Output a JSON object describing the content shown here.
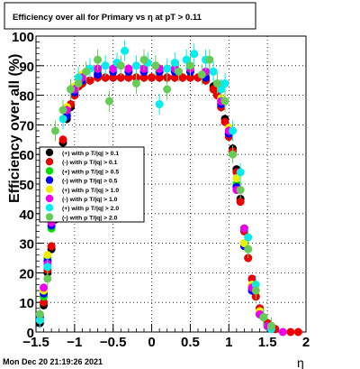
{
  "chart_data": {
    "type": "scatter",
    "title": "Efficiency over all for Primary vs  η at pT > 0.11",
    "xlabel": "η",
    "ylabel": "Efficiency over all (%)",
    "xlim": [
      -1.5,
      2
    ],
    "ylim": [
      0,
      100
    ],
    "x_ticks": [
      -1.5,
      -1,
      -0.5,
      0,
      0.5,
      1,
      1.5,
      2
    ],
    "x_tick_labels": [
      "−1.5",
      "−1",
      "−0.5",
      "0",
      "0.5",
      "1",
      "1.5",
      "2"
    ],
    "y_ticks": [
      0,
      10,
      20,
      30,
      40,
      50,
      60,
      70,
      80,
      90,
      100
    ],
    "y_tick_labels": [
      "0",
      "10",
      "20",
      "30",
      "40",
      "50",
      "60",
      "70",
      "80",
      "90",
      "100"
    ],
    "grid": true,
    "legend_position": "middle-left",
    "footer": "Mon Dec 20 21:19:26 2021",
    "series": [
      {
        "name": "(+) with p T/|q| > 0.1",
        "color": "#000000",
        "x": [
          -1.45,
          -1.4,
          -1.35,
          -1.3,
          -1.25,
          -1.2,
          -1.15,
          -1.1,
          -1.05,
          -1.0,
          -0.95,
          -0.9,
          -0.8,
          -0.7,
          -0.6,
          -0.5,
          -0.4,
          -0.3,
          -0.2,
          -0.1,
          0.0,
          0.1,
          0.2,
          0.3,
          0.4,
          0.5,
          0.6,
          0.7,
          0.8,
          0.85,
          0.9,
          0.95,
          1.0,
          1.05,
          1.1,
          1.15,
          1.2,
          1.25,
          1.3,
          1.35,
          1.4,
          1.45,
          1.5,
          1.55,
          1.6
        ],
        "y": [
          3,
          9,
          20,
          28,
          38,
          52,
          64,
          72,
          76,
          80,
          83,
          84,
          85,
          86,
          86,
          86,
          86,
          86,
          86,
          86,
          86,
          86,
          86,
          86,
          86,
          86,
          86,
          85,
          83,
          80,
          76,
          72,
          67,
          62,
          55,
          45,
          35,
          25,
          18,
          12,
          8,
          5,
          3,
          2,
          1
        ]
      },
      {
        "name": "(-) with p T/|q| > 0.1",
        "color": "#ee0000",
        "x": [
          -1.45,
          -1.4,
          -1.35,
          -1.3,
          -1.25,
          -1.2,
          -1.15,
          -1.1,
          -1.05,
          -1.0,
          -0.95,
          -0.9,
          -0.8,
          -0.7,
          -0.6,
          -0.5,
          -0.4,
          -0.3,
          -0.2,
          -0.1,
          0.0,
          0.1,
          0.2,
          0.3,
          0.4,
          0.5,
          0.6,
          0.7,
          0.8,
          0.85,
          0.9,
          0.95,
          1.0,
          1.05,
          1.1,
          1.15,
          1.2,
          1.25,
          1.3,
          1.35,
          1.4,
          1.45,
          1.5,
          1.55,
          1.6,
          1.8,
          1.9
        ],
        "y": [
          4,
          10,
          21,
          29,
          40,
          53,
          65,
          73,
          77,
          80,
          83,
          84,
          85,
          86,
          86,
          86,
          86,
          86,
          86,
          86,
          86,
          86,
          86,
          86,
          86,
          86,
          86,
          85,
          82,
          80,
          76,
          71,
          66,
          61,
          54,
          44,
          34,
          25,
          18,
          12,
          8,
          5,
          3,
          2,
          1,
          0,
          0
        ]
      },
      {
        "name": "(+) with p T/|q| > 0.5",
        "color": "#00dd00",
        "x": [
          -1.45,
          -1.4,
          -1.35,
          -1.3,
          -1.2,
          -1.1,
          -1.0,
          -0.9,
          -0.7,
          -0.5,
          -0.3,
          -0.1,
          0.1,
          0.3,
          0.5,
          0.7,
          0.9,
          1.0,
          1.1,
          1.2,
          1.3,
          1.4,
          1.5
        ],
        "y": [
          5,
          12,
          25,
          35,
          58,
          74,
          82,
          86,
          88,
          88,
          88,
          88,
          88,
          88,
          88,
          87,
          78,
          68,
          50,
          30,
          15,
          6,
          2
        ]
      },
      {
        "name": "(-) with p T/|q| > 0.5",
        "color": "#0000ff",
        "x": [
          -1.45,
          -1.4,
          -1.35,
          -1.3,
          -1.2,
          -1.1,
          -1.0,
          -0.9,
          -0.7,
          -0.5,
          -0.3,
          -0.1,
          0.1,
          0.3,
          0.5,
          0.7,
          0.9,
          1.0,
          1.1,
          1.2,
          1.3,
          1.4,
          1.5
        ],
        "y": [
          5,
          13,
          24,
          36,
          57,
          73,
          81,
          85,
          87,
          88,
          88,
          88,
          88,
          88,
          88,
          86,
          77,
          67,
          49,
          29,
          14,
          6,
          2
        ]
      },
      {
        "name": "(+) with p T/|q| > 1.0",
        "color": "#eeee00",
        "x": [
          -1.45,
          -1.4,
          -1.35,
          -1.3,
          -1.2,
          -1.1,
          -1.0,
          -0.9,
          -0.7,
          -0.5,
          -0.3,
          -0.1,
          0.1,
          0.3,
          0.5,
          0.7,
          0.9,
          1.0,
          1.1,
          1.2,
          1.3,
          1.4,
          1.5
        ],
        "y": [
          6,
          14,
          26,
          38,
          60,
          76,
          83,
          87,
          89,
          89,
          89,
          89,
          89,
          89,
          89,
          88,
          79,
          69,
          52,
          30,
          16,
          7,
          2
        ]
      },
      {
        "name": "(-) with p T/|q| > 1.0",
        "color": "#ee00ee",
        "x": [
          -1.45,
          -1.4,
          -1.35,
          -1.3,
          -1.2,
          -1.1,
          -1.0,
          -0.9,
          -0.7,
          -0.5,
          -0.3,
          -0.1,
          0.1,
          0.3,
          0.5,
          0.7,
          0.9,
          1.0,
          1.1,
          1.2,
          1.3,
          1.4,
          1.5,
          1.7
        ],
        "y": [
          6,
          15,
          23,
          37,
          59,
          75,
          82,
          86,
          89,
          89,
          89,
          89,
          89,
          89,
          89,
          88,
          78,
          68,
          48,
          35,
          15,
          6,
          2,
          0
        ]
      },
      {
        "name": "(+) with p T/|q| > 2.0",
        "color": "#00eeee",
        "x": [
          -1.45,
          -1.35,
          -1.25,
          -1.15,
          -1.05,
          -0.95,
          -0.8,
          -0.6,
          -0.45,
          -0.35,
          -0.2,
          -0.05,
          0.1,
          0.2,
          0.3,
          0.45,
          0.55,
          0.7,
          0.8,
          0.9,
          0.95,
          1.05,
          1.15,
          1.25,
          1.35,
          1.45,
          1.55
        ],
        "y": [
          4,
          22,
          46,
          72,
          82,
          86,
          89,
          90,
          91,
          95,
          90,
          91,
          77,
          89,
          91,
          92,
          94,
          92,
          88,
          82,
          84,
          68,
          54,
          32,
          16,
          5,
          1
        ]
      },
      {
        "name": "(-) with p T/|q| > 2.0",
        "color": "#66cc55",
        "x": [
          -1.45,
          -1.35,
          -1.25,
          -1.15,
          -1.05,
          -0.95,
          -0.85,
          -0.7,
          -0.55,
          -0.4,
          -0.2,
          -0.1,
          0.05,
          0.2,
          0.35,
          0.5,
          0.65,
          0.75,
          0.85,
          0.95,
          1.05,
          1.15,
          1.25,
          1.35,
          1.45,
          1.55
        ],
        "y": [
          6,
          18,
          68,
          75,
          82,
          84,
          88,
          92,
          78,
          90,
          84,
          92,
          90,
          82,
          88,
          90,
          87,
          92,
          84,
          78,
          60,
          48,
          28,
          14,
          5,
          2
        ]
      }
    ]
  }
}
